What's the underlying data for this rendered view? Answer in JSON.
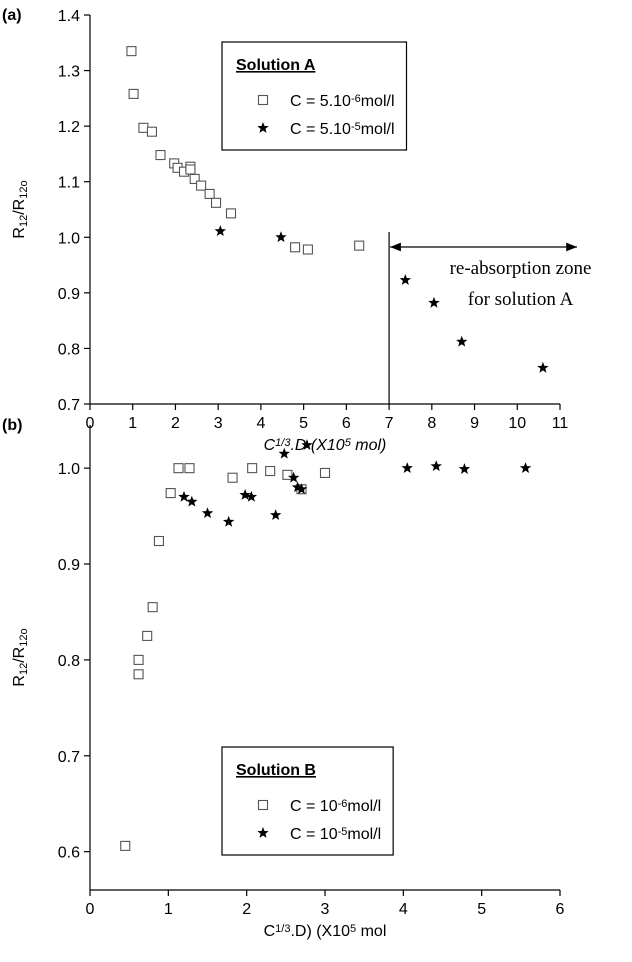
{
  "chart_data": [
    {
      "type": "scatter",
      "panel_label": "(a)",
      "x_label": [
        "C",
        "1/3",
        ".D (X10",
        "5",
        " mol)"
      ],
      "y_label": [
        "R",
        "12",
        "/R",
        "12o"
      ],
      "xlim": [
        0,
        11
      ],
      "xticks": [
        0,
        1,
        2,
        3,
        4,
        5,
        6,
        7,
        8,
        9,
        10,
        11
      ],
      "ylim": [
        0.7,
        1.4
      ],
      "yticks": [
        0.7,
        0.8,
        0.9,
        {
          "value": 1,
          "label": "1.0"
        },
        1.1,
        1.2,
        1.3,
        1.4
      ],
      "legend": "top-center",
      "legend_title": "Solution A",
      "series": [
        {
          "name": [
            "C = 5.10",
            "-6",
            "mol/l"
          ],
          "marker": "square",
          "color": "#555555",
          "x": [
            0.97,
            1.02,
            1.25,
            1.45,
            1.65,
            1.97,
            2.05,
            2.2,
            2.35,
            2.35,
            2.45,
            2.6,
            2.8,
            2.95,
            3.3,
            4.8,
            5.1,
            6.3
          ],
          "y": [
            1.335,
            1.258,
            1.197,
            1.19,
            1.148,
            1.133,
            1.125,
            1.118,
            1.127,
            1.122,
            1.105,
            1.093,
            1.078,
            1.062,
            1.043,
            0.982,
            0.978,
            0.985
          ]
        },
        {
          "name": [
            "C = 5.10",
            "-5",
            "mol/l"
          ],
          "marker": "star",
          "color": "#000000",
          "x": [
            3.05,
            4.47,
            7.38,
            8.05,
            8.7,
            10.6
          ],
          "y": [
            1.011,
            1.0,
            0.923,
            0.882,
            0.812,
            0.765
          ]
        }
      ],
      "annotation": {
        "text": [
          "re-absorption zone",
          "for solution A"
        ],
        "x": 7
      }
    },
    {
      "type": "scatter",
      "panel_label": "(b)",
      "x_label": [
        "C",
        "1/3",
        ".D) (X10",
        "5",
        " mol"
      ],
      "y_label": [
        "R",
        "12",
        "/R",
        "12o"
      ],
      "xlim": [
        0,
        6
      ],
      "xticks": [
        0,
        1,
        2,
        3,
        4,
        5,
        6
      ],
      "ylim": [
        0.56,
        1.045
      ],
      "yticks": [
        0.6,
        0.7,
        0.8,
        0.9,
        {
          "value": 1,
          "label": "1.0"
        }
      ],
      "legend": "bottom-center",
      "legend_title": "Solution B",
      "series": [
        {
          "name": [
            "C = 10",
            "-6",
            "mol/l"
          ],
          "marker": "square",
          "color": "#555555",
          "x": [
            0.45,
            0.62,
            0.62,
            0.73,
            0.8,
            0.88,
            1.03,
            1.13,
            1.27,
            1.82,
            2.07,
            2.3,
            2.52,
            2.7,
            3.0
          ],
          "y": [
            0.606,
            0.785,
            0.8,
            0.825,
            0.855,
            0.924,
            0.974,
            1.0,
            1.0,
            0.99,
            1.0,
            0.997,
            0.993,
            0.978,
            0.995
          ]
        },
        {
          "name": [
            "C = 10",
            "-5",
            "mol/l"
          ],
          "marker": "star",
          "color": "#000000",
          "x": [
            1.2,
            1.3,
            1.5,
            1.77,
            1.98,
            2.06,
            2.37,
            2.48,
            2.6,
            2.65,
            2.7,
            2.77,
            4.05,
            4.42,
            4.78,
            5.56
          ],
          "y": [
            0.97,
            0.965,
            0.953,
            0.944,
            0.972,
            0.97,
            0.951,
            1.015,
            0.99,
            0.98,
            0.978,
            1.024,
            1.0,
            1.002,
            0.999,
            1.0
          ]
        }
      ]
    }
  ]
}
